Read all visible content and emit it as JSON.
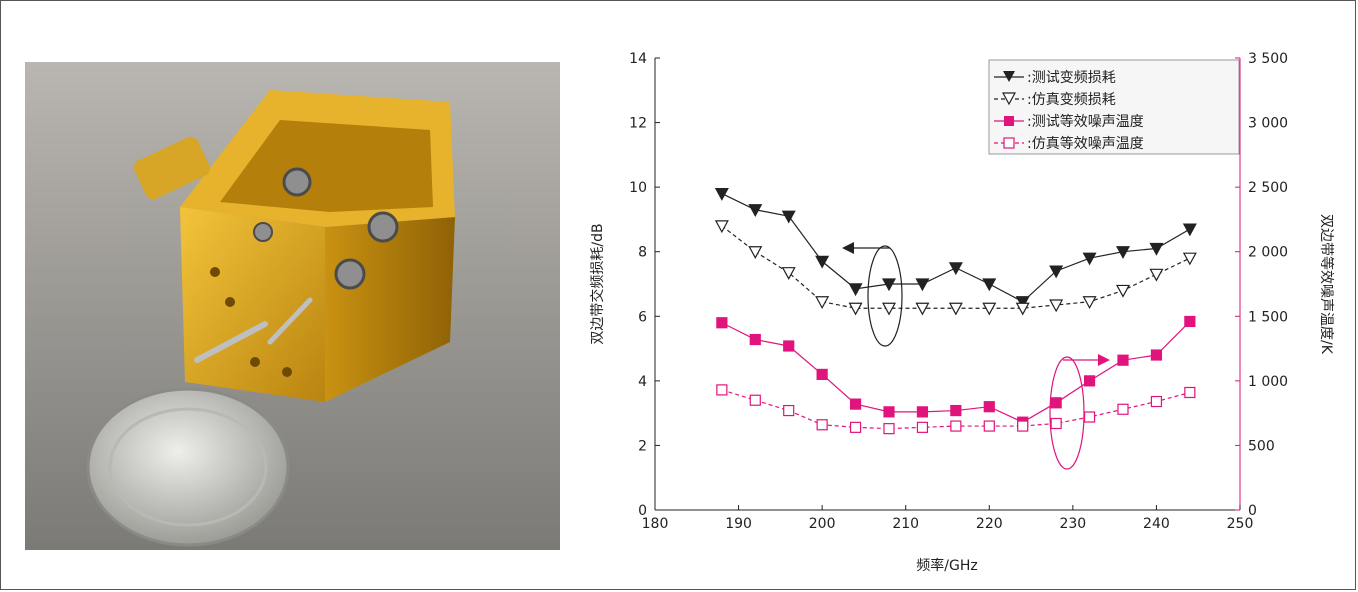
{
  "photo": {
    "subject": "gold-colored waveguide mixer block beside a coin"
  },
  "chart_data": {
    "type": "line",
    "xlabel": "频率/GHz",
    "ylabel_left": "双边带交频损耗/dB",
    "ylabel_right": "双边带等效噪声温度/K",
    "xlim": [
      180,
      250
    ],
    "ylim_left": [
      0,
      14
    ],
    "ylim_right": [
      0,
      3500
    ],
    "x_ticks": [
      "180",
      "190",
      "200",
      "210",
      "220",
      "230",
      "240",
      "250"
    ],
    "y_left_ticks": [
      "0",
      "2",
      "4",
      "6",
      "8",
      "10",
      "12",
      "14"
    ],
    "y_right_ticks": [
      "0",
      "500",
      "1 000",
      "1 500",
      "2 000",
      "2 500",
      "3 000",
      "3 500"
    ],
    "grid": false,
    "legend_position": "top-right",
    "x": [
      188,
      192,
      196,
      200,
      204,
      208,
      212,
      216,
      220,
      224,
      228,
      232,
      236,
      240,
      244
    ],
    "series": [
      {
        "name": ":测试变频损耗",
        "axis": "left",
        "color": "#222222",
        "style": "solid",
        "marker": "filled-down-triangle",
        "values": [
          9.8,
          9.3,
          9.1,
          7.7,
          6.85,
          7.0,
          7.0,
          7.5,
          7.0,
          6.45,
          7.4,
          7.8,
          8.0,
          8.1,
          8.7
        ]
      },
      {
        "name": ":仿真变频损耗",
        "axis": "left",
        "color": "#222222",
        "style": "dashed",
        "marker": "open-down-triangle",
        "values": [
          8.8,
          8.0,
          7.35,
          6.45,
          6.25,
          6.25,
          6.25,
          6.25,
          6.25,
          6.25,
          6.35,
          6.45,
          6.8,
          7.3,
          7.8
        ]
      },
      {
        "name": ":测试等效噪声温度",
        "axis": "right",
        "color": "#e0147c",
        "style": "solid",
        "marker": "filled-square",
        "values": [
          1450,
          1320,
          1270,
          1050,
          820,
          760,
          760,
          770,
          800,
          680,
          830,
          1000,
          1160,
          1200,
          1460
        ]
      },
      {
        "name": ":仿真等效噪声温度",
        "axis": "right",
        "color": "#e0147c",
        "style": "dashed",
        "marker": "open-square",
        "values": [
          930,
          850,
          770,
          660,
          640,
          630,
          640,
          650,
          650,
          650,
          670,
          720,
          780,
          840,
          910
        ]
      }
    ]
  }
}
